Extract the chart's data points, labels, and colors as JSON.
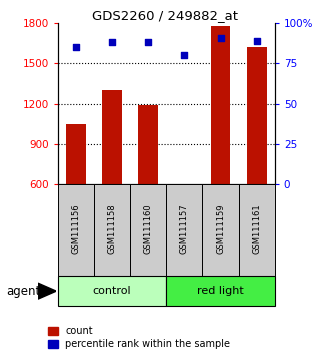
{
  "title": "GDS2260 / 249882_at",
  "samples": [
    "GSM111156",
    "GSM111158",
    "GSM111160",
    "GSM111157",
    "GSM111159",
    "GSM111161"
  ],
  "counts": [
    1050,
    1300,
    1190,
    600,
    1780,
    1620
  ],
  "percentiles": [
    85,
    88,
    88,
    80,
    91,
    89
  ],
  "ylim_left": [
    600,
    1800
  ],
  "ylim_right": [
    0,
    100
  ],
  "yticks_left": [
    600,
    900,
    1200,
    1500,
    1800
  ],
  "yticks_right": [
    0,
    25,
    50,
    75,
    100
  ],
  "yticklabels_right": [
    "0",
    "25",
    "50",
    "75",
    "100%"
  ],
  "bar_color": "#bb1100",
  "dot_color": "#0000bb",
  "bar_width": 0.55,
  "group_control_color": "#bbffbb",
  "group_redlight_color": "#44ee44",
  "sample_box_color": "#cccccc",
  "legend_count_label": "count",
  "legend_pct_label": "percentile rank within the sample",
  "agent_label": "agent"
}
